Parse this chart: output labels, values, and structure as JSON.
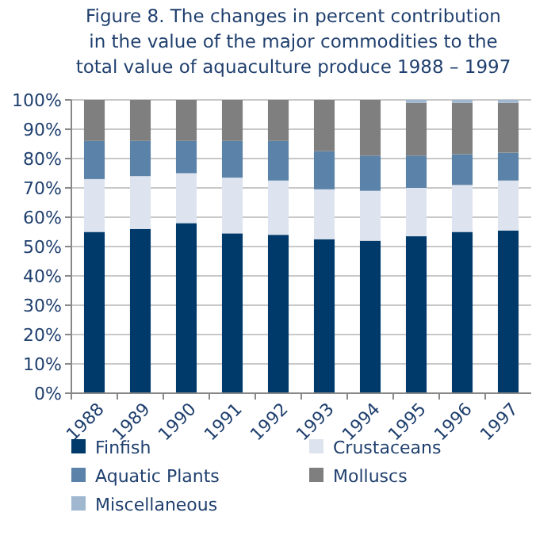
{
  "chart_data": {
    "type": "bar",
    "stacked": true,
    "title": "Figure 8. The changes in percent contribution in the value of the major commodities to the total value of aquaculture produce 1988 – 1997",
    "categories": [
      "1988",
      "1989",
      "1990",
      "1991",
      "1992",
      "1993",
      "1994",
      "1995",
      "1996",
      "1997"
    ],
    "series": [
      {
        "name": "Finfish",
        "color": "#003a6b",
        "values": [
          55,
          56,
          58,
          54.5,
          54,
          52.5,
          52,
          53.5,
          55,
          55.5
        ]
      },
      {
        "name": "Crustaceans",
        "color": "#dde3ef",
        "values": [
          18,
          18,
          17,
          19,
          18.5,
          17,
          17,
          16.5,
          16,
          17
        ]
      },
      {
        "name": "Aquatic Plants",
        "color": "#5b82a8",
        "values": [
          13,
          12,
          11,
          12.5,
          13.5,
          13,
          12,
          11,
          10.5,
          9.5
        ]
      },
      {
        "name": "Molluscs",
        "color": "#7f7f7f",
        "values": [
          14,
          14,
          14,
          14,
          14,
          17.5,
          19,
          18,
          17.5,
          17
        ]
      },
      {
        "name": "Miscellaneous",
        "color": "#9fb8d0",
        "values": [
          0,
          0,
          0,
          0,
          0,
          0,
          0,
          1,
          1,
          1
        ]
      }
    ],
    "ylim": [
      0,
      100
    ],
    "yticks": [
      {
        "value": 0,
        "label": "0%"
      },
      {
        "value": 10,
        "label": "10%"
      },
      {
        "value": 20,
        "label": "20%"
      },
      {
        "value": 30,
        "label": "30%"
      },
      {
        "value": 40,
        "label": "40%"
      },
      {
        "value": 50,
        "label": "50%"
      },
      {
        "value": 60,
        "label": "60%"
      },
      {
        "value": 70,
        "label": "70%"
      },
      {
        "value": 80,
        "label": "80%"
      },
      {
        "value": 90,
        "label": "90%"
      },
      {
        "value": 100,
        "label": "100%"
      }
    ],
    "grid": "y",
    "legend": "bottom"
  }
}
